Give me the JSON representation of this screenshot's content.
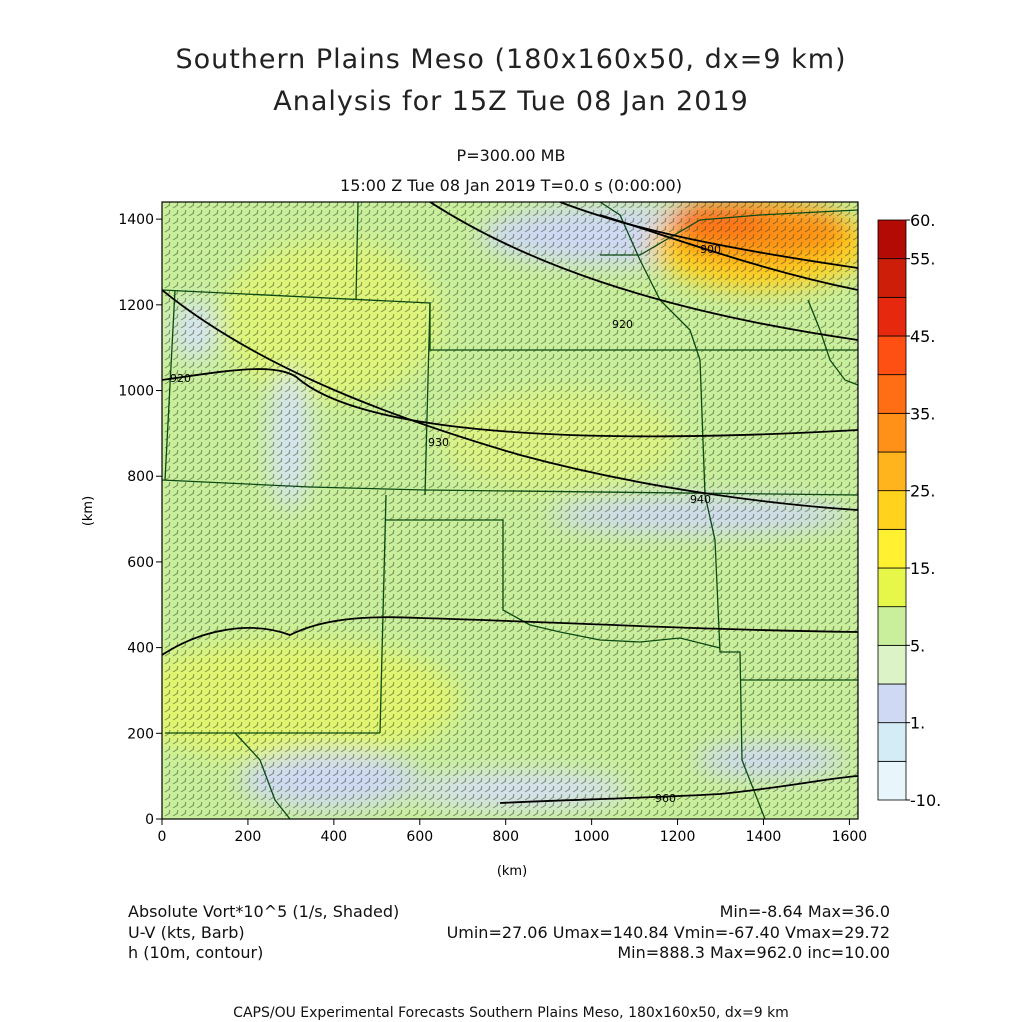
{
  "header": {
    "title_line1": "Southern Plains Meso (180x160x50, dx=9 km)",
    "title_line2": "Analysis for 15Z Tue 08 Jan 2019",
    "level": "P=300.00 MB",
    "time": "15:00 Z Tue 08 Jan 2019   T=0.0 s (0:00:00)"
  },
  "chart_data": {
    "type": "heatmap",
    "xlabel": "(km)",
    "ylabel": "(km)",
    "xlim": [
      0,
      1620
    ],
    "ylim": [
      0,
      1440
    ],
    "x_ticks": [
      0,
      200,
      400,
      600,
      800,
      1000,
      1200,
      1400,
      1600
    ],
    "y_ticks": [
      0,
      200,
      400,
      600,
      800,
      1000,
      1200,
      1400
    ],
    "colorbar": {
      "labels": [
        "60.",
        "55.",
        "45.",
        "35.",
        "25.",
        "15.",
        "5.",
        "1.",
        "-10."
      ],
      "levels": [
        -10,
        -5,
        0,
        1,
        5,
        10,
        15,
        20,
        25,
        30,
        35,
        40,
        45,
        50,
        55,
        60
      ],
      "colors": [
        "#e8f6fb",
        "#d4ecf6",
        "#cfd9f4",
        "#dcf3c8",
        "#c9ef9c",
        "#e6f74a",
        "#fff032",
        "#ffd21e",
        "#ffb41e",
        "#ff9119",
        "#ff6e14",
        "#ff5014",
        "#e6280f",
        "#cd1e0a",
        "#b40a05"
      ]
    },
    "contours": [
      {
        "label": "900",
        "label_x": 1240,
        "label_y": 1320
      },
      {
        "label": "920",
        "label_x": 1100,
        "label_y": 1130
      },
      {
        "label": "920",
        "label_x": 70,
        "label_y": 1030
      },
      {
        "label": "930",
        "label_x": 660,
        "label_y": 870
      },
      {
        "label": "940",
        "label_x": 1250,
        "label_y": 740
      },
      {
        "label": "960",
        "label_x": 1180,
        "label_y": 40
      }
    ]
  },
  "footer": {
    "row1_left": "Absolute Vort*10^5 (1/s, Shaded)",
    "row1_right": "Min=-8.64 Max=36.0",
    "row2_left": "U-V (kts, Barb)",
    "row2_right": "Umin=27.06 Umax=140.84 Vmin=-67.40 Vmax=29.72",
    "row3_left": "h (10m, contour)",
    "row3_right": "Min=888.3 Max=962.0 inc=10.00",
    "credit": "CAPS/OU Experimental Forecasts  Southern Plains Meso, 180x160x50, dx=9 km"
  },
  "colors": {
    "field_base": "#c9ef9c",
    "field_yellow": "#e6f74a",
    "field_lilac": "#cfd9f4",
    "field_orange": "#ff9119",
    "field_red": "#ff6e14",
    "border_lines": "#0c4a14",
    "contours": "#000000"
  }
}
